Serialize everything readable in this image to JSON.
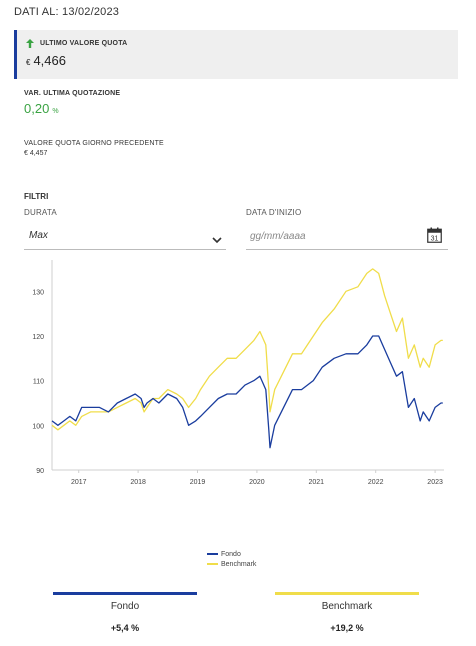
{
  "header": {
    "date_text": "DATI AL: 13/02/2023"
  },
  "last_value": {
    "label": "ULTIMO VALORE QUOTA",
    "currency": "€",
    "value": "4,466"
  },
  "variation": {
    "label": "VAR. ULTIMA QUOTAZIONE",
    "value": "0,20",
    "unit": "%"
  },
  "previous": {
    "label": "VALORE QUOTA GIORNO PRECEDENTE",
    "value": "€ 4,457"
  },
  "filters": {
    "title": "FILTRI",
    "duration_label": "DURATA",
    "duration_value": "Max",
    "start_date_label": "DATA D'INIZIO",
    "start_date_placeholder": "gg/mm/aaaa"
  },
  "colors": {
    "fondo": "#1a3d9e",
    "benchmark": "#f0dd4a",
    "positive": "#3aa343"
  },
  "chart_data": {
    "type": "line",
    "xlabel": "",
    "ylabel": "",
    "ylim": [
      90,
      137
    ],
    "xlim": [
      2016.55,
      2023.15
    ],
    "yticks": [
      90,
      100,
      110,
      120,
      130
    ],
    "xticks": [
      "2017",
      "2018",
      "2019",
      "2020",
      "2021",
      "2022",
      "2023"
    ],
    "grid": false,
    "legend_position": "bottom-center",
    "series": [
      {
        "name": "Fondo",
        "x": [
          2016.55,
          2016.65,
          2016.75,
          2016.85,
          2016.95,
          2017.05,
          2017.2,
          2017.35,
          2017.5,
          2017.65,
          2017.8,
          2017.95,
          2018.05,
          2018.1,
          2018.15,
          2018.25,
          2018.35,
          2018.5,
          2018.65,
          2018.75,
          2018.85,
          2018.97,
          2019.05,
          2019.2,
          2019.35,
          2019.5,
          2019.65,
          2019.8,
          2019.95,
          2020.05,
          2020.15,
          2020.2,
          2020.22,
          2020.3,
          2020.45,
          2020.6,
          2020.75,
          2020.85,
          2020.95,
          2021.1,
          2021.3,
          2021.5,
          2021.7,
          2021.85,
          2021.95,
          2022.05,
          2022.15,
          2022.25,
          2022.35,
          2022.45,
          2022.55,
          2022.65,
          2022.75,
          2022.8,
          2022.9,
          2023.0,
          2023.1,
          2023.13
        ],
        "y": [
          101,
          100,
          101,
          102,
          101,
          104,
          104,
          104,
          103,
          105,
          106,
          107,
          106,
          104,
          105,
          106,
          105,
          107,
          106,
          104,
          100,
          101,
          102,
          104,
          106,
          107,
          107,
          109,
          110,
          111,
          108,
          99,
          95,
          100,
          104,
          108,
          108,
          109,
          110,
          113,
          115,
          116,
          116,
          118,
          120,
          120,
          117,
          114,
          111,
          112,
          104,
          106,
          101,
          103,
          101,
          104,
          105,
          105
        ]
      },
      {
        "name": "Benchmark",
        "x": [
          2016.55,
          2016.65,
          2016.75,
          2016.85,
          2016.95,
          2017.05,
          2017.2,
          2017.35,
          2017.5,
          2017.65,
          2017.8,
          2017.95,
          2018.05,
          2018.1,
          2018.15,
          2018.25,
          2018.35,
          2018.5,
          2018.65,
          2018.75,
          2018.85,
          2018.97,
          2019.05,
          2019.2,
          2019.35,
          2019.5,
          2019.65,
          2019.8,
          2019.95,
          2020.05,
          2020.15,
          2020.2,
          2020.22,
          2020.3,
          2020.45,
          2020.6,
          2020.75,
          2020.85,
          2020.95,
          2021.1,
          2021.3,
          2021.5,
          2021.7,
          2021.85,
          2021.95,
          2022.05,
          2022.15,
          2022.25,
          2022.35,
          2022.45,
          2022.55,
          2022.65,
          2022.75,
          2022.8,
          2022.9,
          2023.0,
          2023.1,
          2023.13
        ],
        "y": [
          100,
          99,
          100,
          101,
          100,
          102,
          103,
          103,
          103,
          104,
          105,
          106,
          105,
          103,
          104,
          106,
          106,
          108,
          107,
          106,
          104,
          106,
          108,
          111,
          113,
          115,
          115,
          117,
          119,
          121,
          118,
          108,
          103,
          108,
          112,
          116,
          116,
          118,
          120,
          123,
          126,
          130,
          131,
          134,
          135,
          134,
          129,
          125,
          121,
          124,
          115,
          118,
          113,
          115,
          113,
          118,
          119,
          119
        ]
      }
    ]
  },
  "legend": {
    "fondo": "Fondo",
    "benchmark": "Benchmark"
  },
  "summary": {
    "fondo_name": "Fondo",
    "fondo_value": "+5,4 %",
    "benchmark_name": "Benchmark",
    "benchmark_value": "+19,2 %"
  }
}
